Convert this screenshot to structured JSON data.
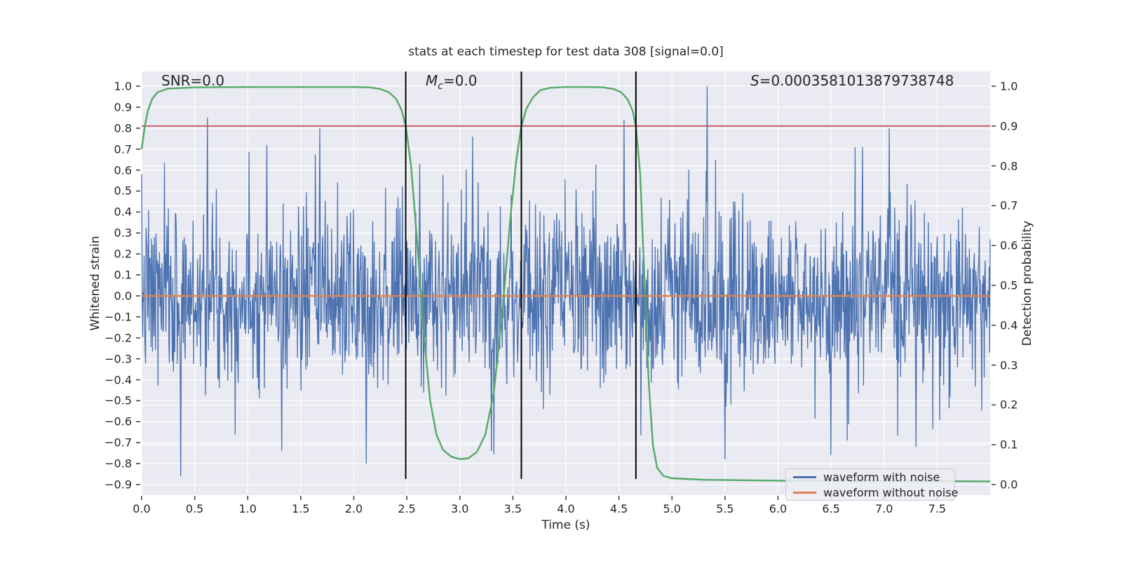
{
  "figure_title": "stats at each timestep for test data 308 [signal=0.0]",
  "annotations": {
    "snr": {
      "text": "SNR=0.0"
    },
    "mc": {
      "var": "M",
      "sub": "c",
      "rest": "=0.0"
    },
    "s": {
      "var": "S",
      "rest": "=0.0003581013879738748"
    }
  },
  "chart_data": {
    "type": "line",
    "title": "stats at each timestep for test data 308 [signal=0.0]",
    "xlabel": "Time (s)",
    "ylabel_left": "Whitened strain",
    "ylabel_right": "Detection probability",
    "xlim": [
      0,
      8
    ],
    "ylim_left": [
      -0.95,
      1.07
    ],
    "right_axis_mapping": "strain = 1.9 * probability - 0.9 (right 0.0 aligns with left -0.9, right 1.0 with left 1.0)",
    "x_ticks": [
      0.0,
      0.5,
      1.0,
      1.5,
      2.0,
      2.5,
      3.0,
      3.5,
      4.0,
      4.5,
      5.0,
      5.5,
      6.0,
      6.5,
      7.0,
      7.5
    ],
    "y_ticks_left": [
      1.0,
      0.9,
      0.8,
      0.7,
      0.6,
      0.5,
      0.4,
      0.3,
      0.2,
      0.1,
      0.0,
      -0.1,
      -0.2,
      -0.3,
      -0.4,
      -0.5,
      -0.6,
      -0.7,
      -0.8,
      -0.9
    ],
    "y_ticks_right": [
      1.0,
      0.9,
      0.8,
      0.7,
      0.6,
      0.5,
      0.4,
      0.3,
      0.2,
      0.1,
      0.0
    ],
    "grid": {
      "on": true,
      "color": "#ffffff",
      "background": "#eaeaf2"
    },
    "series": [
      {
        "name": "waveform with noise",
        "color": "#4C72B0",
        "axis": "left",
        "kind": "random-noise",
        "note": "dense gaussian-like whitened noise spanning full 0-8 s window",
        "n_samples": 1716,
        "std": 0.21,
        "clip": [
          -0.87,
          1.0
        ],
        "notable_spikes": [
          {
            "t": 0.37,
            "v": -0.86
          },
          {
            "t": 0.62,
            "v": 0.85
          },
          {
            "t": 1.18,
            "v": 0.72
          },
          {
            "t": 1.32,
            "v": -0.74
          },
          {
            "t": 1.68,
            "v": 0.8
          },
          {
            "t": 2.12,
            "v": -0.8
          },
          {
            "t": 2.62,
            "v": 0.63
          },
          {
            "t": 3.12,
            "v": 0.76
          },
          {
            "t": 3.3,
            "v": -0.74
          },
          {
            "t": 4.55,
            "v": 0.84
          },
          {
            "t": 5.33,
            "v": 1.0
          },
          {
            "t": 5.5,
            "v": -0.78
          },
          {
            "t": 6.5,
            "v": -0.76
          },
          {
            "t": 7.05,
            "v": 0.8
          },
          {
            "t": 7.3,
            "v": -0.72
          }
        ]
      },
      {
        "name": "waveform without noise",
        "color": "#DD8452",
        "axis": "left",
        "kind": "constant",
        "value": 0.0
      },
      {
        "name": "detection probability",
        "color": "#55A868",
        "axis": "right",
        "kind": "curve",
        "points": [
          [
            0.0,
            0.842
          ],
          [
            0.03,
            0.9
          ],
          [
            0.06,
            0.94
          ],
          [
            0.1,
            0.968
          ],
          [
            0.15,
            0.985
          ],
          [
            0.25,
            0.994
          ],
          [
            0.5,
            0.997
          ],
          [
            1.0,
            0.998
          ],
          [
            1.5,
            0.998
          ],
          [
            2.0,
            0.998
          ],
          [
            2.15,
            0.997
          ],
          [
            2.25,
            0.993
          ],
          [
            2.33,
            0.985
          ],
          [
            2.4,
            0.968
          ],
          [
            2.45,
            0.94
          ],
          [
            2.49,
            0.9
          ],
          [
            2.54,
            0.8
          ],
          [
            2.6,
            0.6
          ],
          [
            2.66,
            0.38
          ],
          [
            2.72,
            0.21
          ],
          [
            2.78,
            0.125
          ],
          [
            2.84,
            0.088
          ],
          [
            2.92,
            0.07
          ],
          [
            3.0,
            0.064
          ],
          [
            3.08,
            0.066
          ],
          [
            3.16,
            0.082
          ],
          [
            3.24,
            0.125
          ],
          [
            3.32,
            0.23
          ],
          [
            3.4,
            0.43
          ],
          [
            3.47,
            0.65
          ],
          [
            3.53,
            0.81
          ],
          [
            3.58,
            0.9
          ],
          [
            3.63,
            0.945
          ],
          [
            3.69,
            0.972
          ],
          [
            3.76,
            0.99
          ],
          [
            3.85,
            0.996
          ],
          [
            4.0,
            0.998
          ],
          [
            4.2,
            0.998
          ],
          [
            4.35,
            0.997
          ],
          [
            4.45,
            0.993
          ],
          [
            4.52,
            0.985
          ],
          [
            4.58,
            0.968
          ],
          [
            4.63,
            0.938
          ],
          [
            4.66,
            0.9
          ],
          [
            4.7,
            0.78
          ],
          [
            4.74,
            0.52
          ],
          [
            4.78,
            0.26
          ],
          [
            4.82,
            0.1
          ],
          [
            4.86,
            0.042
          ],
          [
            4.92,
            0.022
          ],
          [
            5.0,
            0.016
          ],
          [
            5.3,
            0.012
          ],
          [
            6.0,
            0.01
          ],
          [
            7.0,
            0.009
          ],
          [
            8.0,
            0.008
          ]
        ]
      },
      {
        "name": "detection threshold",
        "color": "#C44E52",
        "axis": "right",
        "kind": "hline",
        "value": 0.9
      },
      {
        "name": "threshold crossing markers",
        "color": "#000000",
        "axis": "left",
        "kind": "vlines",
        "x": [
          2.49,
          3.58,
          4.66
        ],
        "y_span": [
          -0.873,
          1.07
        ]
      }
    ],
    "legend": {
      "position": "lower right",
      "entries": [
        {
          "label": "waveform with noise",
          "color": "#4C72B0"
        },
        {
          "label": "waveform without noise",
          "color": "#DD8452"
        }
      ]
    }
  }
}
